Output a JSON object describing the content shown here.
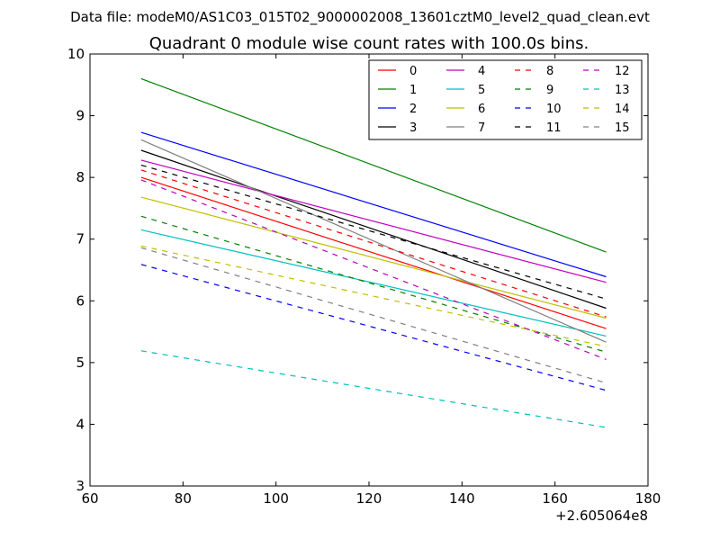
{
  "chart_data": {
    "type": "line",
    "suptitle": "Data file: modeM0/AS1C03_015T02_9000002008_13601cztM0_level2_quad_clean.evt",
    "title": "Quadrant 0 module wise count rates with 100.0s bins.",
    "xlabel": "",
    "ylabel": "",
    "x_offset_label": "+2.605064e8",
    "xlim": [
      60,
      180
    ],
    "ylim": [
      3,
      10
    ],
    "xticks": [
      "60",
      "80",
      "100",
      "120",
      "140",
      "160",
      "180"
    ],
    "yticks": [
      "3",
      "4",
      "5",
      "6",
      "7",
      "8",
      "9",
      "10"
    ],
    "x": [
      71,
      171
    ],
    "grid": false,
    "legend_position": "upper-right",
    "legend_columns": 4,
    "series": [
      {
        "name": "0",
        "color": "#ff0000",
        "dash": "solid",
        "values": [
          8.0,
          5.55
        ]
      },
      {
        "name": "1",
        "color": "#008000",
        "dash": "solid",
        "values": [
          9.6,
          6.79
        ]
      },
      {
        "name": "2",
        "color": "#0000ff",
        "dash": "solid",
        "values": [
          8.73,
          6.39
        ]
      },
      {
        "name": "3",
        "color": "#000000",
        "dash": "solid",
        "values": [
          8.44,
          5.88
        ]
      },
      {
        "name": "4",
        "color": "#bf00bf",
        "dash": "solid",
        "values": [
          8.28,
          6.3
        ]
      },
      {
        "name": "5",
        "color": "#00bfbf",
        "dash": "solid",
        "values": [
          7.15,
          5.43
        ]
      },
      {
        "name": "6",
        "color": "#bfbf00",
        "dash": "solid",
        "values": [
          7.68,
          5.72
        ]
      },
      {
        "name": "7",
        "color": "#808080",
        "dash": "solid",
        "values": [
          8.61,
          5.33
        ]
      },
      {
        "name": "8",
        "color": "#ff0000",
        "dash": "dashed",
        "values": [
          8.12,
          5.74
        ]
      },
      {
        "name": "9",
        "color": "#008000",
        "dash": "dashed",
        "values": [
          7.37,
          5.17
        ]
      },
      {
        "name": "10",
        "color": "#0000ff",
        "dash": "dashed",
        "values": [
          6.59,
          4.55
        ]
      },
      {
        "name": "11",
        "color": "#000000",
        "dash": "dashed",
        "values": [
          8.2,
          6.03
        ]
      },
      {
        "name": "12",
        "color": "#bf00bf",
        "dash": "dashed",
        "values": [
          7.96,
          5.05
        ]
      },
      {
        "name": "13",
        "color": "#00bfbf",
        "dash": "dashed",
        "values": [
          5.19,
          3.95
        ]
      },
      {
        "name": "14",
        "color": "#bfbf00",
        "dash": "dashed",
        "values": [
          6.89,
          5.26
        ]
      },
      {
        "name": "15",
        "color": "#808080",
        "dash": "dashed",
        "values": [
          6.86,
          4.67
        ]
      }
    ]
  }
}
